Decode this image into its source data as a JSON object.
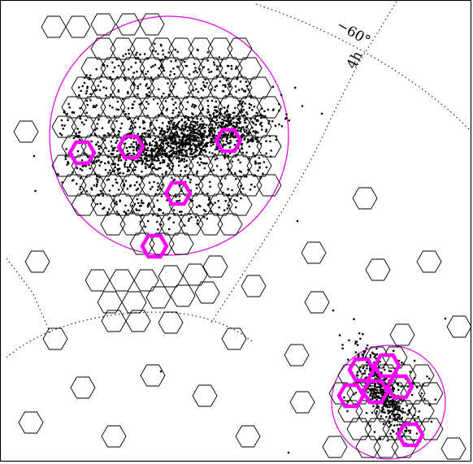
{
  "labels": {
    "dec": "−60°",
    "ra": "4h"
  },
  "colors": {
    "frame": "#000000",
    "field_outline": "#000000",
    "highlight": "#ff00ff",
    "circle": "#e000e0",
    "grid": "#000000",
    "points": "#000000"
  }
}
